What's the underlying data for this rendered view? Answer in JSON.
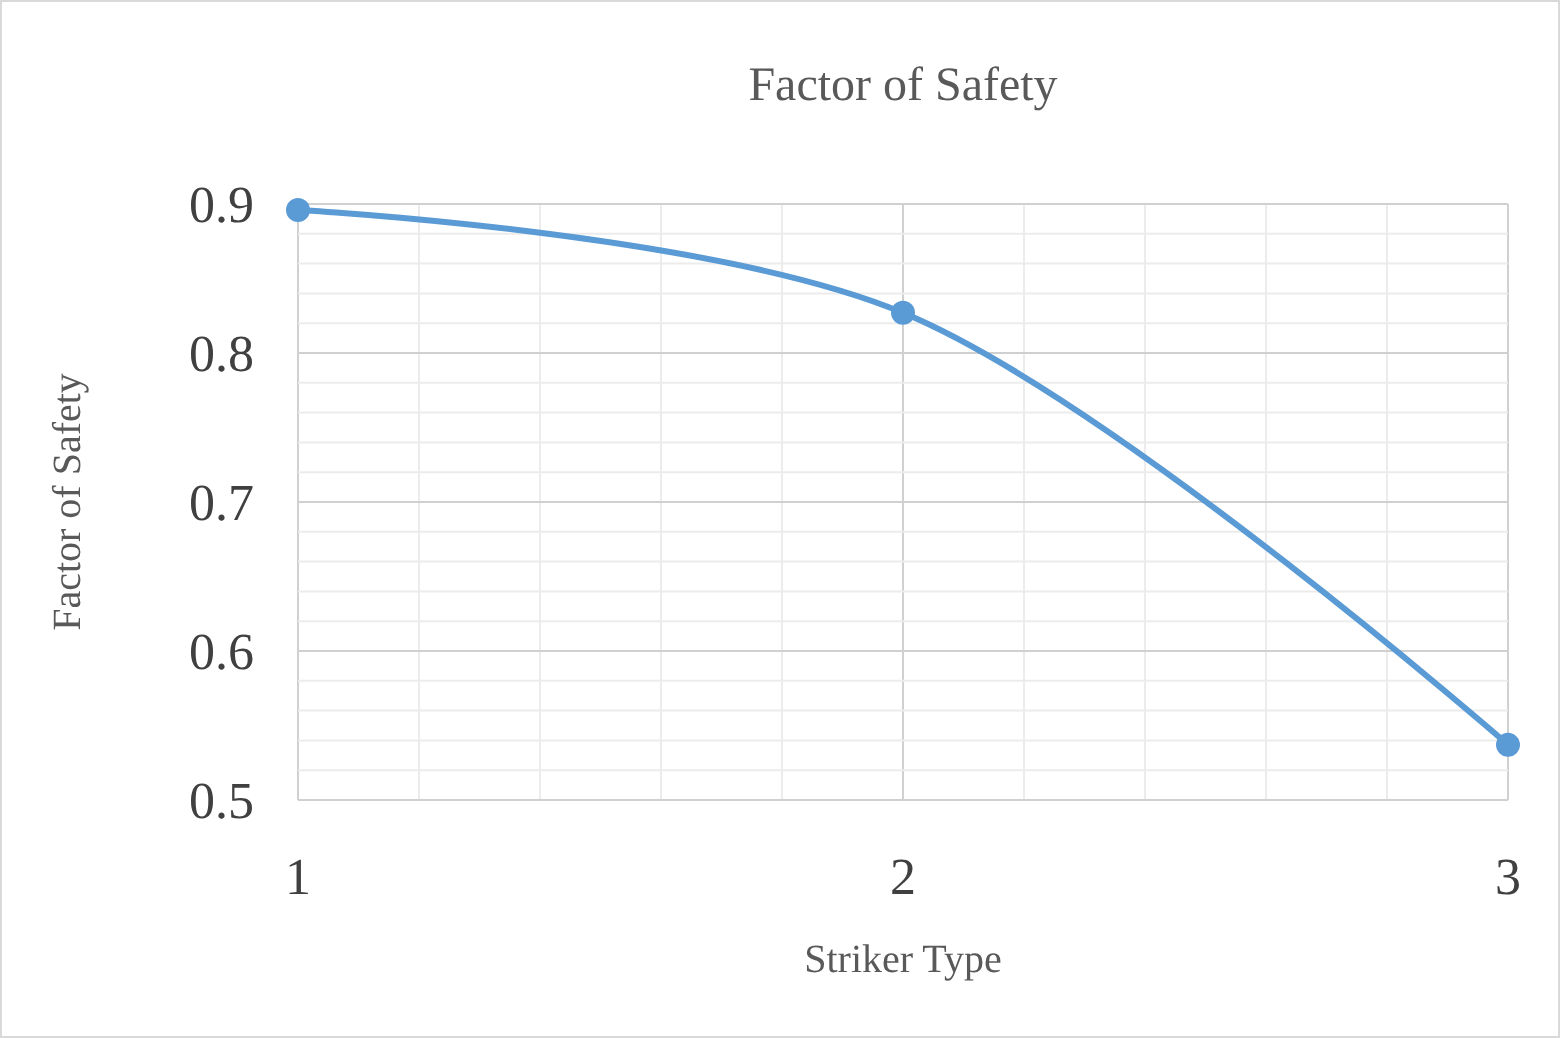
{
  "chart_data": {
    "type": "line",
    "title": "Factor of Safety",
    "xlabel": "Striker Type",
    "ylabel": "Factor of Safety",
    "x": [
      1,
      2,
      3
    ],
    "series": [
      {
        "color": "#5b9bd5",
        "values": [
          0.896,
          0.827,
          0.537
        ]
      }
    ],
    "xlim": [
      1,
      3
    ],
    "xticks": [
      1,
      {
        "value": 1.2,
        "label": null
      },
      {
        "value": 1.4,
        "label": null
      },
      {
        "value": 1.6,
        "label": null
      },
      {
        "value": 1.8,
        "label": null
      },
      2,
      {
        "value": 2.2,
        "label": null
      },
      {
        "value": 2.4,
        "label": null
      },
      {
        "value": 2.6,
        "label": null
      },
      {
        "value": 2.8,
        "label": null
      },
      3
    ],
    "ylim": [
      0.5,
      0.9
    ],
    "yticks": [
      0.5,
      {
        "value": 0.52,
        "label": null
      },
      {
        "value": 0.54,
        "label": null
      },
      {
        "value": 0.56,
        "label": null
      },
      {
        "value": 0.58,
        "label": null
      },
      0.6,
      {
        "value": 0.62,
        "label": null
      },
      {
        "value": 0.64,
        "label": null
      },
      {
        "value": 0.66,
        "label": null
      },
      {
        "value": 0.68,
        "label": null
      },
      0.7,
      {
        "value": 0.72,
        "label": null
      },
      {
        "value": 0.74,
        "label": null
      },
      {
        "value": 0.76,
        "label": null
      },
      {
        "value": 0.78,
        "label": null
      },
      0.8,
      {
        "value": 0.82,
        "label": null
      },
      {
        "value": 0.84,
        "label": null
      },
      {
        "value": 0.86,
        "label": null
      },
      {
        "value": 0.88,
        "label": null
      },
      0.9
    ],
    "grid": true,
    "marker": "circle",
    "line_style": "solid"
  }
}
